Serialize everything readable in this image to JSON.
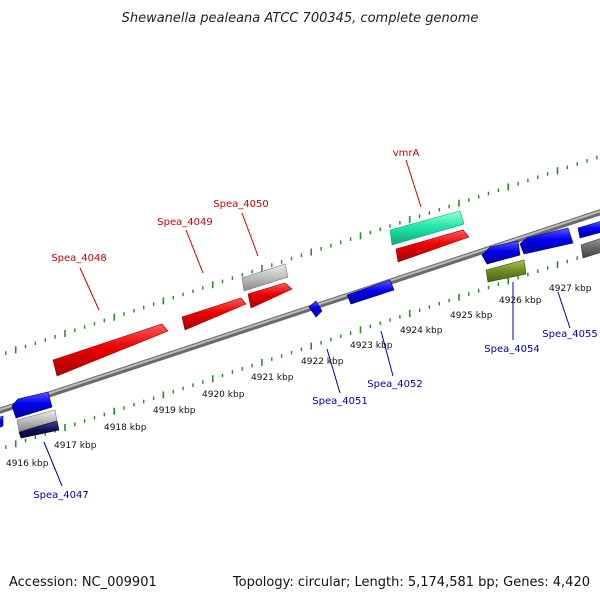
{
  "title": "Shewanella pealeana ATCC 700345, complete genome",
  "footer": {
    "accession": "Accession: NC_009901",
    "summary": "Topology: circular; Length: 5,174,581 bp; Genes: 4,420"
  },
  "colors": {
    "forward_label": "#cc0000",
    "reverse_label": "#0000aa",
    "tick_dots": "#2a8a2a"
  },
  "tick_labels": [
    "4916 kbp",
    "4917 kbp",
    "4918 kbp",
    "4919 kbp",
    "4920 kbp",
    "4921 kbp",
    "4922 kbp",
    "4923 kbp",
    "4924 kbp",
    "4925 kbp",
    "4926 kbp",
    "4927 kbp"
  ],
  "gene_labels": {
    "spea_4047": "Spea_4047",
    "spea_4048": "Spea_4048",
    "spea_4049": "Spea_4049",
    "spea_4050": "Spea_4050",
    "spea_4051": "Spea_4051",
    "spea_4052": "Spea_4052",
    "spea_4054": "Spea_4054",
    "spea_4055": "Spea_4055",
    "vmra": "vmrA"
  }
}
